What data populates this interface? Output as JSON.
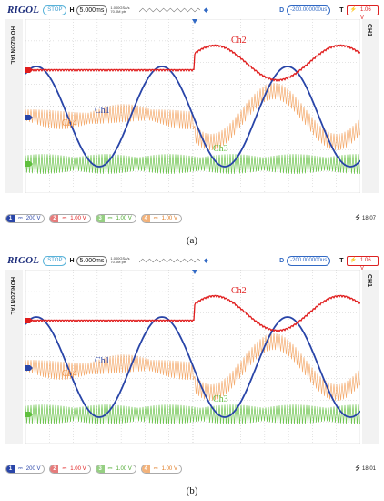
{
  "colors": {
    "ch1": "#2945a8",
    "ch2": "#e01d1d",
    "ch3": "#5fbf3d",
    "ch4": "#f09040",
    "grid": "#c8c8c8",
    "accent": "#3169c4"
  },
  "panels": [
    {
      "brand": "RIGOL",
      "run_state": "STOP",
      "h_label": "H",
      "timebase": "5.000ms",
      "sample_rate_line1": "1.000GSa/s",
      "sample_rate_line2": "70.0M pts",
      "d_label": "D",
      "delay": "-200.000000us",
      "t_label": "T",
      "trig_slope": "⚡",
      "trig_level": "1.06 V",
      "side_left": "HORIZONTAL",
      "side_right": "CH1",
      "trace_labels": {
        "ch1": "Ch1",
        "ch2": "Ch2",
        "ch3": "Ch3",
        "ch4": "Ch4"
      },
      "channels": [
        {
          "num": "1",
          "coupling": "⎓",
          "scale": "200 V"
        },
        {
          "num": "2",
          "coupling": "⎓",
          "scale": "1.00 V"
        },
        {
          "num": "3",
          "coupling": "⎓",
          "scale": "1.00 V"
        },
        {
          "num": "4",
          "coupling": "⎓",
          "scale": "1.00 V"
        }
      ],
      "usb_icon": "usb-icon",
      "time": "18:07",
      "caption": "(a)"
    },
    {
      "brand": "RIGOL",
      "run_state": "STOP",
      "h_label": "H",
      "timebase": "5.000ms",
      "sample_rate_line1": "1.000GSa/s",
      "sample_rate_line2": "70.0M pts",
      "d_label": "D",
      "delay": "-200.000000us",
      "t_label": "T",
      "trig_slope": "⚡",
      "trig_level": "1.06 V",
      "side_left": "HORIZONTAL",
      "side_right": "CH1",
      "trace_labels": {
        "ch1": "Ch1",
        "ch2": "Ch2",
        "ch3": "Ch3",
        "ch4": "Ch4"
      },
      "channels": [
        {
          "num": "1",
          "coupling": "⎓",
          "scale": "200 V"
        },
        {
          "num": "2",
          "coupling": "⎓",
          "scale": "1.00 V"
        },
        {
          "num": "3",
          "coupling": "⎓",
          "scale": "1.00 V"
        },
        {
          "num": "4",
          "coupling": "⎓",
          "scale": "1.00 V"
        }
      ],
      "usb_icon": "usb-icon",
      "time": "18:01",
      "caption": "(b)"
    }
  ]
}
